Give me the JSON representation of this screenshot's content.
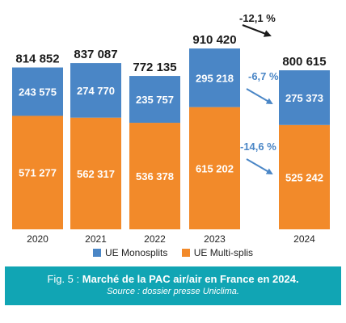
{
  "chart_data": {
    "type": "bar",
    "stacked": true,
    "categories": [
      "2020",
      "2021",
      "2022",
      "2023",
      "2024"
    ],
    "totals": [
      "814 852",
      "837 087",
      "772 135",
      "910 420",
      "800 615"
    ],
    "total_values": [
      814852,
      837087,
      772135,
      910420,
      800615
    ],
    "series": [
      {
        "name": "UE Monosplits",
        "color": "#4a86c6",
        "values": [
          243575,
          274770,
          235757,
          295218,
          275373
        ],
        "labels": [
          "243 575",
          "274 770",
          "235 757",
          "295 218",
          "275 373"
        ]
      },
      {
        "name": "UE Multi-splis",
        "color": "#f28a2a",
        "values": [
          571277,
          562317,
          536378,
          615202,
          525242
        ],
        "labels": [
          "571 277",
          "562 317",
          "536 378",
          "615 202",
          "525 242"
        ]
      }
    ],
    "annotations": {
      "total_change": "-12,1 %",
      "mono_change": "-6,7 %",
      "multi_change": "-14,6 %"
    },
    "ylim": [
      0,
      1000000
    ],
    "grid": false,
    "legend_position": "bottom"
  },
  "caption": {
    "fig": "Fig. 5 :",
    "title": "Marché de la PAC air/air en France en 2024.",
    "source": "Source : dossier presse Uniclima."
  }
}
